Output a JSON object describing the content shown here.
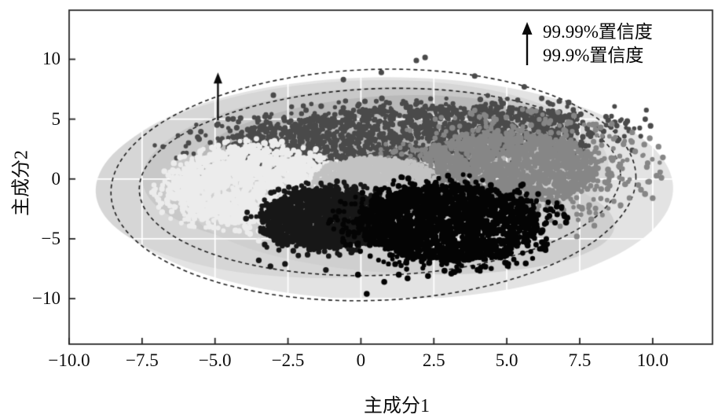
{
  "chart_data": {
    "type": "scatter",
    "title": "",
    "xlabel": "主成分1",
    "ylabel": "主成分2",
    "x_axis": {
      "tick_labels": [
        "−10.0",
        "−7.5",
        "−5.0",
        "−2.5",
        "0",
        "2.5",
        "5.0",
        "7.5",
        "10.0"
      ],
      "tick_values": [
        -10,
        -7.5,
        -5,
        -2.5,
        0,
        2.5,
        5,
        7.5,
        10
      ],
      "range": [
        -10,
        12.05
      ]
    },
    "y_axis": {
      "tick_labels": [
        "10",
        "5",
        "0",
        "−5",
        "−10"
      ],
      "tick_values": [
        10,
        5,
        0,
        -5,
        -10
      ],
      "range": [
        -13.8,
        14.1
      ]
    },
    "grid": {
      "on": true,
      "color": "#ffffff"
    },
    "legend": {
      "position": "top-right",
      "symbol": "up-arrow-icon",
      "entries": [
        "99.99%置信度",
        "99.9%置信度"
      ]
    },
    "annotation_arrow": {
      "x": -4.9,
      "y_from": 4.9,
      "y_to": 8.9
    },
    "confidence_ellipses": [
      {
        "label": "99.99%置信度",
        "cx": 0.43,
        "cy": -0.5,
        "rx": 9.0,
        "ry": 9.65,
        "rot": -2,
        "style": "dashed",
        "color": "#1f1f1f"
      },
      {
        "label": "99.9%置信度",
        "cx": 0.65,
        "cy": -0.25,
        "rx": 8.25,
        "ry": 7.8,
        "rot": -2,
        "style": "dashed",
        "color": "#1f1f1f"
      }
    ],
    "background_regions": [
      {
        "color": "#e3e3e3",
        "cx": 0.9,
        "cy": -0.8,
        "rx": 9.8,
        "ry": 9.3,
        "rot": 0
      },
      {
        "color": "#d6d6d6",
        "cx": -0.3,
        "cy": 0.0,
        "rx": 8.8,
        "ry": 8.2,
        "rot": -3
      },
      {
        "color": "#c8c8c8",
        "cx": 0.2,
        "cy": 0.9,
        "rx": 7.7,
        "ry": 6.7,
        "rot": -3
      },
      {
        "color": "#b9b9b9",
        "cx": 0.7,
        "cy": 1.6,
        "rx": 6.6,
        "ry": 5.3,
        "rot": -4
      },
      {
        "color": "#aeaeae",
        "cx": -0.6,
        "cy": -0.4,
        "rx": 5.3,
        "ry": 4.3,
        "rot": 0
      },
      {
        "color": "#cfcfcf",
        "cx": 1.4,
        "cy": -3.0,
        "rx": 7.3,
        "ry": 4.9,
        "rot": 3
      }
    ],
    "clusters": [
      {
        "name": "cluster-top-dark-gray",
        "color": "#4a4a4a",
        "cx": 1.6,
        "cy": 3.7,
        "rx": 6.1,
        "ry": 2.3,
        "rot": 7,
        "n": 1700,
        "dot_r": 3.1,
        "edge": {
          "n": 240,
          "spread": 1.45
        },
        "outliers": [
          [
            1.9,
            9.9
          ],
          [
            2.2,
            10.15
          ],
          [
            0.7,
            8.9
          ],
          [
            -0.6,
            8.3
          ],
          [
            3.9,
            8.6
          ],
          [
            5.6,
            7.7
          ],
          [
            6.8,
            6.5
          ],
          [
            8.4,
            5.2
          ],
          [
            8.8,
            3.2
          ],
          [
            9.3,
            2.4
          ],
          [
            -3.0,
            7.0
          ],
          [
            -4.55,
            5.0
          ]
        ]
      },
      {
        "name": "cluster-left-pale",
        "color": "#ececec",
        "cx": -3.85,
        "cy": -0.6,
        "rx": 2.55,
        "ry": 3.1,
        "rot": -18,
        "n": 1500,
        "dot_r": 3.3,
        "edge": {
          "n": 280,
          "spread": 1.3
        },
        "outliers": [
          [
            -3.8,
            -4.6
          ],
          [
            -3.5,
            -5.15
          ],
          [
            -4.3,
            -4.3
          ],
          [
            -6.6,
            0.3
          ],
          [
            -6.5,
            -1.2
          ],
          [
            -6.2,
            1.8
          ],
          [
            -2.6,
            -4.9
          ]
        ]
      },
      {
        "name": "cluster-right-medium-gray",
        "color": "#868686",
        "cx": 5.05,
        "cy": 0.8,
        "rx": 3.0,
        "ry": 2.9,
        "rot": 10,
        "n": 1500,
        "dot_r": 3.2,
        "edge": {
          "n": 430,
          "spread": 1.75
        },
        "outliers": [
          [
            9.0,
            2.9
          ],
          [
            9.4,
            2.3
          ],
          [
            9.8,
            1.0
          ],
          [
            10.3,
            0.1
          ],
          [
            10.2,
            2.7
          ],
          [
            9.6,
            -0.9
          ],
          [
            8.9,
            -2.2
          ],
          [
            9.3,
            3.9
          ],
          [
            8.6,
            4.6
          ],
          [
            10.0,
            -1.6
          ],
          [
            9.9,
            3.4
          ],
          [
            10.35,
            1.8
          ],
          [
            8.0,
            -3.9
          ],
          [
            7.4,
            -4.8
          ]
        ]
      },
      {
        "name": "cluster-center-light-gray",
        "color": "#c2c2c2",
        "cx": 0.45,
        "cy": -0.15,
        "rx": 2.0,
        "ry": 1.85,
        "rot": 0,
        "n": 1200,
        "dot_r": 3.0,
        "edge": {
          "n": 70,
          "spread": 1.1
        },
        "outliers": []
      },
      {
        "name": "cluster-bottom-left-black",
        "color": "#171717",
        "cx": -1.35,
        "cy": -3.3,
        "rx": 2.0,
        "ry": 2.5,
        "rot": -12,
        "n": 1400,
        "dot_r": 3.2,
        "edge": {
          "n": 160,
          "spread": 1.3
        },
        "outliers": [
          [
            -3.5,
            -6.8
          ],
          [
            -3.1,
            -7.3
          ],
          [
            -2.6,
            -7.1
          ],
          [
            -1.2,
            -7.6
          ]
        ]
      },
      {
        "name": "cluster-bottom-right-black",
        "color": "#040404",
        "cx": 3.0,
        "cy": -3.7,
        "rx": 3.05,
        "ry": 3.1,
        "rot": 8,
        "n": 1900,
        "dot_r": 3.3,
        "edge": {
          "n": 260,
          "spread": 1.35
        },
        "outliers": [
          [
            0.2,
            -9.6
          ],
          [
            1.3,
            -8.0
          ],
          [
            1.6,
            -8.3
          ],
          [
            2.3,
            -8.1
          ],
          [
            -0.1,
            -8.0
          ],
          [
            4.0,
            -7.6
          ],
          [
            5.05,
            -7.1
          ],
          [
            5.65,
            -7.05
          ],
          [
            3.1,
            -7.9
          ],
          [
            0.8,
            -8.6
          ]
        ]
      }
    ],
    "colors": {
      "axis": "#2b2b2b",
      "tick": "#222222",
      "text": "#0e0e0e",
      "arrow": "#0a0a0a"
    }
  }
}
